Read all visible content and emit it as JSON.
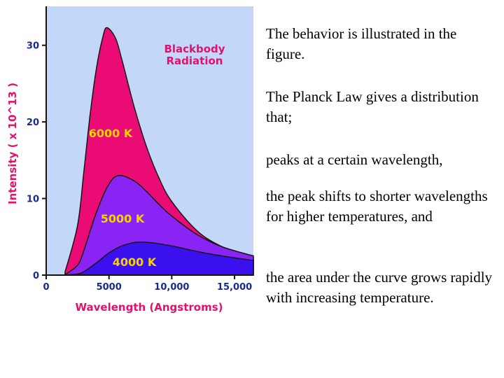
{
  "chart_data": {
    "type": "area",
    "title": "Blackbody Radiation",
    "title_lines": [
      "Blackbody",
      "Radiation"
    ],
    "xlabel": "Wavelength (Angstroms)",
    "ylabel": "Intensity ( x 10^13 )",
    "xlim": [
      0,
      16500
    ],
    "ylim": [
      0,
      35
    ],
    "x_ticks": [
      {
        "value": 0,
        "label": "0"
      },
      {
        "value": 5000,
        "label": "5000"
      },
      {
        "value": 10000,
        "label": "10,000"
      },
      {
        "value": 15000,
        "label": "15,000"
      }
    ],
    "y_ticks": [
      {
        "value": 0,
        "label": "0"
      },
      {
        "value": 10,
        "label": "10"
      },
      {
        "value": 20,
        "label": "20"
      },
      {
        "value": 30,
        "label": "30"
      }
    ],
    "grid": false,
    "background": "#c3d8f8",
    "series": [
      {
        "name": "6000 K",
        "temperature": 6000,
        "peak": 32.3,
        "color": "#ea0c74",
        "x": [
          1500,
          2500,
          3000,
          3500,
          4000,
          4500,
          4830,
          5500,
          6000,
          7000,
          8000,
          9000,
          10000,
          12000,
          14000,
          16500
        ],
        "y": [
          0.4,
          6.5,
          13.5,
          21,
          27,
          31,
          32.3,
          31,
          28.3,
          22,
          16.7,
          12.6,
          9.6,
          5.8,
          3.7,
          2.2
        ]
      },
      {
        "name": "5000 K",
        "temperature": 5000,
        "peak": 13,
        "color": "#8a24f4",
        "x": [
          1500,
          2500,
          3000,
          4000,
          5000,
          5800,
          7000,
          8000,
          9000,
          10000,
          12000,
          14000,
          16500
        ],
        "y": [
          0.05,
          1.3,
          3.2,
          8.2,
          11.9,
          13,
          12.3,
          10.9,
          9.2,
          7.7,
          5.3,
          3.7,
          2.5
        ]
      },
      {
        "name": "4000 K",
        "temperature": 4000,
        "peak": 4.3,
        "color": "#3b10ee",
        "x": [
          1500,
          2500,
          3000,
          4000,
          5000,
          6000,
          7250,
          8500,
          10000,
          12000,
          14000,
          16500
        ],
        "y": [
          0.0,
          0.15,
          0.45,
          1.6,
          2.9,
          3.8,
          4.3,
          4.2,
          3.8,
          3.1,
          2.5,
          1.9
        ]
      }
    ]
  },
  "text_blocks": [
    "The behavior is illustrated in the figure.",
    "The Planck Law gives a distribution that;",
    "peaks at a certain wavelength,",
    "the peak shifts to shorter wavelengths for higher temperatures, and",
    "the area under the curve grows rapidly with increasing temperature."
  ]
}
